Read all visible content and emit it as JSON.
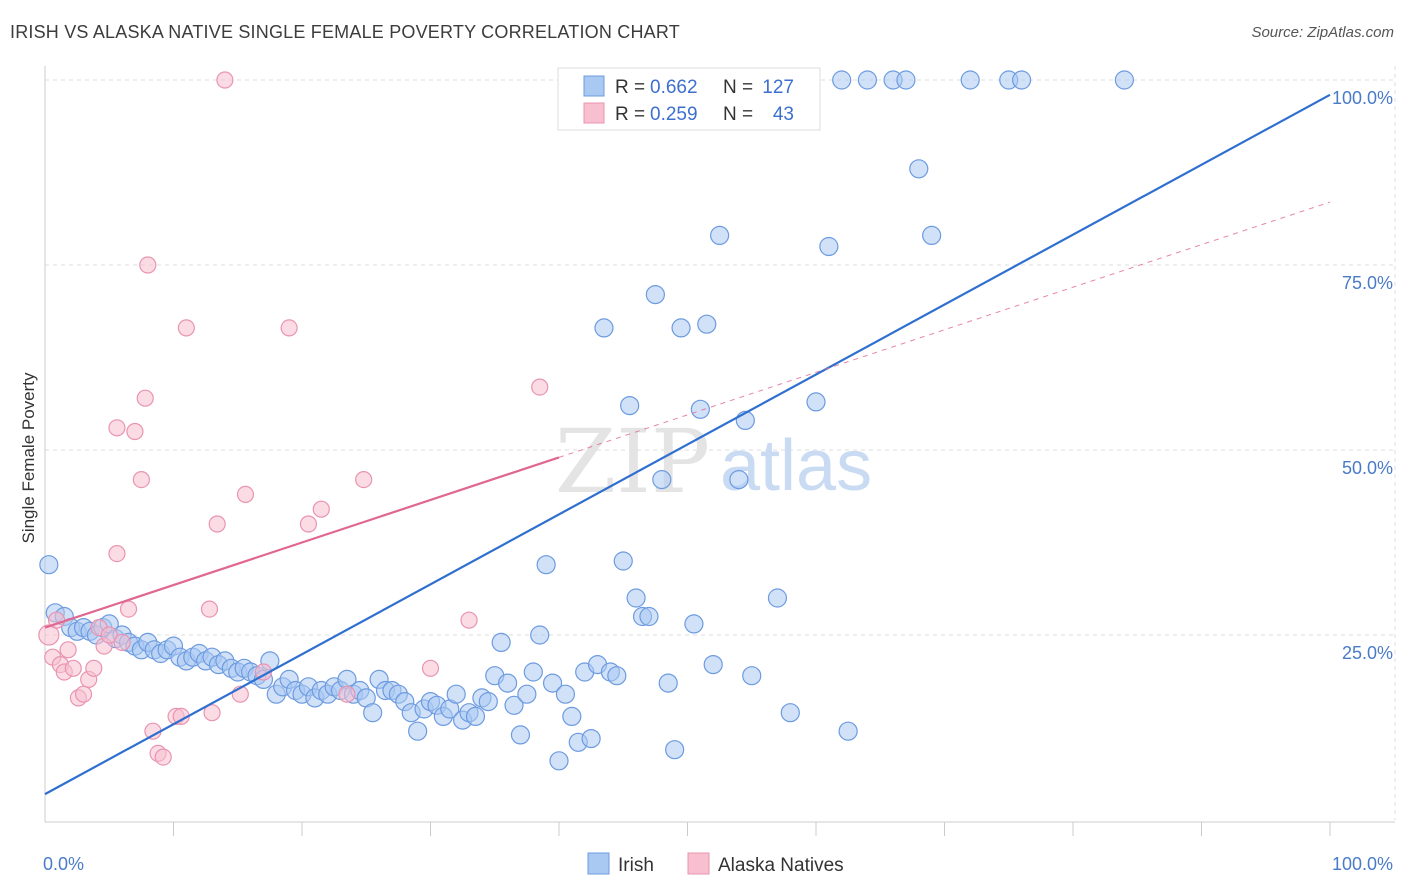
{
  "title": "IRISH VS ALASKA NATIVE SINGLE FEMALE POVERTY CORRELATION CHART",
  "source": "Source: ZipAtlas.com",
  "watermark": {
    "zip": "ZIP",
    "atlas": "atlas"
  },
  "chart_data": {
    "type": "scatter",
    "title": "IRISH VS ALASKA NATIVE SINGLE FEMALE POVERTY CORRELATION CHART",
    "xlabel": "",
    "ylabel": "Single Female Poverty",
    "xlim": [
      0,
      100
    ],
    "ylim": [
      0,
      100
    ],
    "x_tick_labels": [
      "0.0%",
      "100.0%"
    ],
    "y_ticks": [
      25,
      50,
      75,
      100
    ],
    "y_tick_labels": [
      "25.0%",
      "50.0%",
      "75.0%",
      "100.0%"
    ],
    "grid": true,
    "legend_placement": "top-center",
    "colors": {
      "irish_fill": "#a9c8f2",
      "irish_stroke": "#6d9be0",
      "irish_line": "#2f6fcf",
      "alaska_fill": "#f7bfd0",
      "alaska_stroke": "#e994b1",
      "alaska_line": "#e06890",
      "tick_label": "#4a7bc8"
    },
    "stats": [
      {
        "series": "Irish",
        "r_label": "R =",
        "r": "0.662",
        "n_label": "N =",
        "n": "127"
      },
      {
        "series": "Alaska Natives",
        "r_label": "R =",
        "r": "0.259",
        "n_label": "N =",
        "n": "43"
      }
    ],
    "series": [
      {
        "name": "Irish",
        "trend": {
          "x": [
            0,
            100
          ],
          "y": [
            3.5,
            98
          ]
        },
        "points": [
          [
            0.3,
            34.5,
            9
          ],
          [
            0.8,
            28,
            9
          ],
          [
            1.5,
            27.5,
            9
          ],
          [
            2,
            26,
            9
          ],
          [
            2.5,
            25.5,
            9
          ],
          [
            3,
            26,
            9
          ],
          [
            3.5,
            25.5,
            9
          ],
          [
            4,
            25,
            9
          ],
          [
            4.5,
            26,
            9
          ],
          [
            5,
            26.5,
            9
          ],
          [
            5.5,
            24.5,
            9
          ],
          [
            6,
            25,
            9
          ],
          [
            6.5,
            24,
            9
          ],
          [
            7,
            23.5,
            9
          ],
          [
            7.5,
            23,
            9
          ],
          [
            8,
            24,
            9
          ],
          [
            8.5,
            23,
            9
          ],
          [
            9,
            22.5,
            9
          ],
          [
            9.5,
            23,
            9
          ],
          [
            10,
            23.5,
            9
          ],
          [
            10.5,
            22,
            9
          ],
          [
            11,
            21.5,
            9
          ],
          [
            11.5,
            22,
            9
          ],
          [
            12,
            22.5,
            9
          ],
          [
            12.5,
            21.5,
            9
          ],
          [
            13,
            22,
            9
          ],
          [
            13.5,
            21,
            9
          ],
          [
            14,
            21.5,
            9
          ],
          [
            14.5,
            20.5,
            9
          ],
          [
            15,
            20,
            9
          ],
          [
            15.5,
            20.5,
            9
          ],
          [
            16,
            20,
            9
          ],
          [
            16.5,
            19.5,
            9
          ],
          [
            17,
            19,
            9
          ],
          [
            17.5,
            21.5,
            9
          ],
          [
            18,
            17,
            9
          ],
          [
            18.5,
            18,
            9
          ],
          [
            19,
            19,
            9
          ],
          [
            19.5,
            17.5,
            9
          ],
          [
            20,
            17,
            9
          ],
          [
            20.5,
            18,
            9
          ],
          [
            21,
            16.5,
            9
          ],
          [
            21.5,
            17.5,
            9
          ],
          [
            22,
            17,
            9
          ],
          [
            22.5,
            18,
            9
          ],
          [
            23,
            17.5,
            9
          ],
          [
            23.5,
            19,
            9
          ],
          [
            24,
            17,
            9
          ],
          [
            24.5,
            17.5,
            9
          ],
          [
            25,
            16.5,
            9
          ],
          [
            25.5,
            14.5,
            9
          ],
          [
            26,
            19,
            9
          ],
          [
            26.5,
            17.5,
            9
          ],
          [
            27,
            17.5,
            9
          ],
          [
            27.5,
            17,
            9
          ],
          [
            28,
            16,
            9
          ],
          [
            28.5,
            14.5,
            9
          ],
          [
            29,
            12,
            9
          ],
          [
            29.5,
            15,
            9
          ],
          [
            30,
            16,
            9
          ],
          [
            30.5,
            15.5,
            9
          ],
          [
            31,
            14,
            9
          ],
          [
            31.5,
            15,
            9
          ],
          [
            32,
            17,
            9
          ],
          [
            32.5,
            13.5,
            9
          ],
          [
            33,
            14.5,
            9
          ],
          [
            33.5,
            14,
            9
          ],
          [
            34,
            16.5,
            9
          ],
          [
            34.5,
            16,
            9
          ],
          [
            35,
            19.5,
            9
          ],
          [
            35.5,
            24,
            9
          ],
          [
            36,
            18.5,
            9
          ],
          [
            36.5,
            15.5,
            9
          ],
          [
            37,
            11.5,
            9
          ],
          [
            37.5,
            17,
            9
          ],
          [
            38,
            20,
            9
          ],
          [
            38.5,
            25,
            9
          ],
          [
            39,
            34.5,
            9
          ],
          [
            39.5,
            18.5,
            9
          ],
          [
            40,
            8,
            9
          ],
          [
            40.5,
            17,
            9
          ],
          [
            41,
            14,
            9
          ],
          [
            41.5,
            10.5,
            9
          ],
          [
            42,
            20,
            9
          ],
          [
            42.5,
            11,
            9
          ],
          [
            43,
            21,
            9
          ],
          [
            43.5,
            66.5,
            9
          ],
          [
            44,
            20,
            9
          ],
          [
            44.5,
            19.5,
            9
          ],
          [
            45,
            35,
            9
          ],
          [
            45.5,
            56,
            9
          ],
          [
            46,
            30,
            9
          ],
          [
            46.5,
            27.5,
            9
          ],
          [
            47,
            27.5,
            9
          ],
          [
            47.5,
            71,
            9
          ],
          [
            48,
            46,
            9
          ],
          [
            48.5,
            18.5,
            9
          ],
          [
            49,
            9.5,
            9
          ],
          [
            49.5,
            66.5,
            9
          ],
          [
            50,
            96,
            9
          ],
          [
            50.5,
            26.5,
            9
          ],
          [
            51,
            55.5,
            9
          ],
          [
            51.5,
            67,
            9
          ],
          [
            52,
            21,
            9
          ],
          [
            52.5,
            79,
            9
          ],
          [
            53,
            100,
            9
          ],
          [
            53.5,
            100,
            9
          ],
          [
            54,
            46,
            9
          ],
          [
            54.5,
            54,
            9
          ],
          [
            55,
            19.5,
            9
          ],
          [
            56,
            100,
            9
          ],
          [
            57,
            30,
            9
          ],
          [
            58,
            14.5,
            9
          ],
          [
            59,
            100,
            9
          ],
          [
            60,
            56.5,
            9
          ],
          [
            61,
            77.5,
            9
          ],
          [
            62,
            100,
            9
          ],
          [
            62.5,
            12,
            9
          ],
          [
            64,
            100,
            9
          ],
          [
            66,
            100,
            9
          ],
          [
            67,
            100,
            9
          ],
          [
            68,
            88,
            9
          ],
          [
            69,
            79,
            9
          ],
          [
            72,
            100,
            9
          ],
          [
            75,
            100,
            9
          ],
          [
            76,
            100,
            9
          ],
          [
            84,
            100,
            9
          ]
        ]
      },
      {
        "name": "Alaska Natives",
        "trend": {
          "x": [
            0,
            40
          ],
          "y": [
            26,
            49
          ]
        },
        "trend_extended": {
          "x": [
            40,
            100
          ],
          "y": [
            49,
            83.5
          ]
        },
        "points": [
          [
            0.3,
            25,
            10
          ],
          [
            0.6,
            22,
            8
          ],
          [
            0.9,
            27,
            8
          ],
          [
            1.2,
            21,
            8
          ],
          [
            1.5,
            20,
            8
          ],
          [
            1.8,
            23,
            8
          ],
          [
            2.2,
            20.5,
            8
          ],
          [
            2.6,
            16.5,
            8
          ],
          [
            3,
            17,
            8
          ],
          [
            3.4,
            19,
            8
          ],
          [
            3.8,
            20.5,
            8
          ],
          [
            4.2,
            26,
            8
          ],
          [
            4.6,
            23.5,
            8
          ],
          [
            5,
            25,
            8
          ],
          [
            5.6,
            36,
            8
          ],
          [
            5.6,
            53,
            8
          ],
          [
            6,
            24,
            8
          ],
          [
            6.5,
            28.5,
            8
          ],
          [
            7,
            52.5,
            8
          ],
          [
            7.5,
            46,
            8
          ],
          [
            7.8,
            57,
            8
          ],
          [
            8,
            75,
            8
          ],
          [
            8.4,
            12,
            8
          ],
          [
            8.8,
            9,
            8
          ],
          [
            9.2,
            8.5,
            8
          ],
          [
            10.2,
            14,
            8
          ],
          [
            10.6,
            14,
            8
          ],
          [
            11,
            66.5,
            8
          ],
          [
            12.8,
            28.5,
            8
          ],
          [
            13,
            14.5,
            8
          ],
          [
            13.4,
            40,
            8
          ],
          [
            14,
            100,
            8
          ],
          [
            15.2,
            17,
            8
          ],
          [
            15.6,
            44,
            8
          ],
          [
            17,
            20,
            8
          ],
          [
            19,
            66.5,
            8
          ],
          [
            20.5,
            40,
            8
          ],
          [
            21.5,
            42,
            8
          ],
          [
            23.5,
            17,
            8
          ],
          [
            24.8,
            46,
            8
          ],
          [
            30,
            20.5,
            8
          ],
          [
            33,
            27,
            8
          ],
          [
            38.5,
            58.5,
            8
          ]
        ]
      }
    ]
  }
}
